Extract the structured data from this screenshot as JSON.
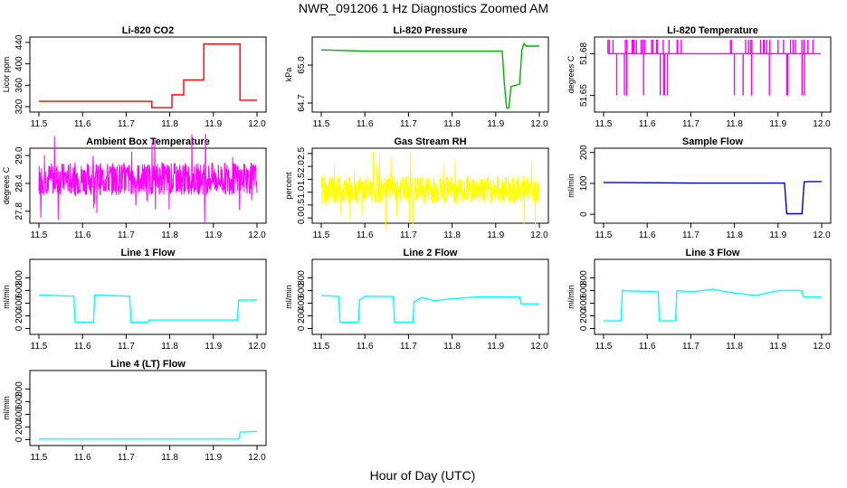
{
  "figure": {
    "title": "NWR_091206  1 Hz Diagnostics Zoomed AM",
    "xlabel": "Hour of Day (UTC)"
  },
  "chart_data": [
    {
      "type": "line",
      "title": "Li-820 CO2",
      "ylabel": "Licor ppm",
      "xlim": [
        11.5,
        12.0
      ],
      "ylim": [
        315,
        445
      ],
      "xticks": [
        "11.5",
        "11.6",
        "11.7",
        "11.8",
        "11.9",
        "12.0"
      ],
      "yticks": [
        "320",
        "360",
        "400",
        "440"
      ],
      "color": "#ff0000",
      "series": [
        {
          "x": [
            11.5,
            11.759,
            11.759,
            11.805,
            11.805,
            11.832,
            11.832,
            11.878,
            11.878,
            11.961,
            11.961,
            12.0
          ],
          "y": [
            330,
            330,
            318,
            318,
            342,
            342,
            370,
            370,
            437,
            437,
            332,
            332
          ]
        }
      ]
    },
    {
      "type": "line",
      "title": "Li-820 Pressure",
      "ylabel": "kPa",
      "xlim": [
        11.5,
        12.0
      ],
      "ylim": [
        64.65,
        65.2
      ],
      "xticks": [
        "11.5",
        "11.6",
        "11.7",
        "11.8",
        "11.9",
        "12.0"
      ],
      "yticks": [
        "64.7",
        "65.0"
      ],
      "color": "#00b000",
      "series": [
        {
          "x": [
            11.5,
            11.6,
            11.7,
            11.8,
            11.915,
            11.92,
            11.925,
            11.93,
            11.935,
            11.955,
            11.96,
            11.965,
            11.97,
            12.0
          ],
          "y": [
            65.12,
            65.11,
            65.11,
            65.11,
            65.11,
            64.85,
            64.66,
            64.66,
            64.83,
            64.85,
            65.12,
            65.17,
            65.15,
            65.15
          ]
        }
      ]
    },
    {
      "type": "line",
      "title": "Li-820 Temperature",
      "ylabel": "degrees C",
      "xlim": [
        11.5,
        12.0
      ],
      "ylim": [
        51.64,
        51.69
      ],
      "xticks": [
        "11.5",
        "11.6",
        "11.7",
        "11.8",
        "11.9",
        "12.0"
      ],
      "yticks": [
        "51.65",
        "51.68"
      ],
      "color": "#ff00ff",
      "series": [
        {
          "x": [
            11.51,
            11.53,
            11.55,
            11.57,
            11.59,
            11.61,
            11.63,
            11.65,
            11.67,
            11.8,
            11.82,
            11.84,
            11.86,
            11.88,
            11.9,
            11.92,
            11.94,
            11.96,
            11.98
          ],
          "y": [
            51.69,
            51.65,
            51.69,
            51.69,
            51.69,
            51.69,
            51.65,
            51.69,
            51.69,
            51.65,
            51.65,
            51.69,
            51.69,
            51.65,
            51.69,
            51.65,
            51.69,
            51.69,
            51.69
          ]
        }
      ]
    },
    {
      "type": "line",
      "title": "Ambient Box Temperature",
      "ylabel": "degrees C",
      "xlim": [
        11.5,
        12.0
      ],
      "ylim": [
        27.6,
        29.1
      ],
      "xticks": [
        "11.5",
        "11.6",
        "11.7",
        "11.8",
        "11.9",
        "12.0"
      ],
      "yticks": [
        "27.8",
        "28.4",
        "29.0"
      ],
      "color": "#ff00ff",
      "series": [
        {
          "x": [
            11.5,
            11.6,
            11.7,
            11.8,
            11.9,
            12.0
          ],
          "y": [
            28.5,
            28.5,
            28.5,
            28.5,
            28.5,
            28.5
          ]
        }
      ]
    },
    {
      "type": "line",
      "title": "Gas Stream RH",
      "ylabel": "percent",
      "xlim": [
        11.5,
        12.0
      ],
      "ylim": [
        -0.1,
        2.6
      ],
      "xticks": [
        "11.5",
        "11.6",
        "11.7",
        "11.8",
        "11.9",
        "12.0"
      ],
      "yticks": [
        "0.0",
        "0.5",
        "1.0",
        "1.5",
        "2.0",
        "2.5"
      ],
      "color": "#ffff00",
      "series": [
        {
          "x": [
            11.5,
            11.6,
            11.7,
            11.8,
            11.9,
            12.0
          ],
          "y": [
            1.1,
            1.1,
            1.1,
            1.1,
            1.1,
            1.1
          ]
        }
      ]
    },
    {
      "type": "line",
      "title": "Sample Flow",
      "ylabel": "ml/min",
      "xlim": [
        11.5,
        12.0
      ],
      "ylim": [
        -20,
        205
      ],
      "xticks": [
        "11.5",
        "11.6",
        "11.7",
        "11.8",
        "11.9",
        "12.0"
      ],
      "yticks": [
        "0",
        "100",
        "200"
      ],
      "color": "#0000cc",
      "series": [
        {
          "x": [
            11.5,
            11.6,
            11.7,
            11.8,
            11.9,
            11.915,
            11.92,
            11.955,
            11.96,
            11.97,
            12.0
          ],
          "y": [
            103,
            102,
            101,
            101,
            101,
            101,
            2,
            2,
            105,
            106,
            106
          ]
        }
      ]
    },
    {
      "type": "line",
      "title": "Line 1 Flow",
      "ylabel": "ml/min",
      "xlim": [
        11.5,
        12.0
      ],
      "ylim": [
        -50,
        1050
      ],
      "xticks": [
        "11.5",
        "11.6",
        "11.7",
        "11.8",
        "11.9",
        "12.0"
      ],
      "yticks": [
        "0",
        "200",
        "400",
        "600",
        "800"
      ],
      "color": "#00ffff",
      "series": [
        {
          "x": [
            11.5,
            11.58,
            11.583,
            11.625,
            11.628,
            11.708,
            11.711,
            11.75,
            11.753,
            11.955,
            11.958,
            12.0
          ],
          "y": [
            530,
            510,
            100,
            100,
            530,
            510,
            100,
            100,
            135,
            135,
            450,
            450
          ]
        }
      ]
    },
    {
      "type": "line",
      "title": "Line 2 Flow",
      "ylabel": "ml/min",
      "xlim": [
        11.5,
        12.0
      ],
      "ylim": [
        -50,
        1050
      ],
      "xticks": [
        "11.5",
        "11.6",
        "11.7",
        "11.8",
        "11.9",
        "12.0"
      ],
      "yticks": [
        "0",
        "200",
        "400",
        "600",
        "800"
      ],
      "color": "#00ffff",
      "series": [
        {
          "x": [
            11.5,
            11.54,
            11.543,
            11.585,
            11.588,
            11.6,
            11.665,
            11.668,
            11.71,
            11.713,
            11.73,
            11.76,
            11.8,
            11.86,
            11.955,
            11.958,
            12.0
          ],
          "y": [
            520,
            505,
            100,
            100,
            450,
            510,
            505,
            100,
            100,
            420,
            490,
            440,
            470,
            500,
            500,
            390,
            390
          ]
        }
      ]
    },
    {
      "type": "line",
      "title": "Line 3 Flow",
      "ylabel": "ml/min",
      "xlim": [
        11.5,
        12.0
      ],
      "ylim": [
        -50,
        1050
      ],
      "xticks": [
        "11.5",
        "11.6",
        "11.7",
        "11.8",
        "11.9",
        "12.0"
      ],
      "yticks": [
        "0",
        "200",
        "400",
        "600",
        "800"
      ],
      "color": "#00ffff",
      "series": [
        {
          "x": [
            11.5,
            11.54,
            11.543,
            11.625,
            11.628,
            11.665,
            11.668,
            11.7,
            11.75,
            11.8,
            11.85,
            11.9,
            11.955,
            11.958,
            12.0
          ],
          "y": [
            120,
            120,
            600,
            580,
            120,
            120,
            600,
            580,
            620,
            560,
            520,
            600,
            600,
            500,
            500
          ]
        }
      ]
    },
    {
      "type": "line",
      "title": "Line 4 (LT) Flow",
      "ylabel": "ml/min",
      "xlim": [
        11.5,
        12.0
      ],
      "ylim": [
        -50,
        1050
      ],
      "xticks": [
        "11.5",
        "11.6",
        "11.7",
        "11.8",
        "11.9",
        "12.0"
      ],
      "yticks": [
        "0",
        "200",
        "400",
        "600",
        "800"
      ],
      "color": "#00ffff",
      "series": [
        {
          "x": [
            11.5,
            11.958,
            11.962,
            12.0
          ],
          "y": [
            10,
            10,
            120,
            130
          ]
        }
      ]
    }
  ]
}
